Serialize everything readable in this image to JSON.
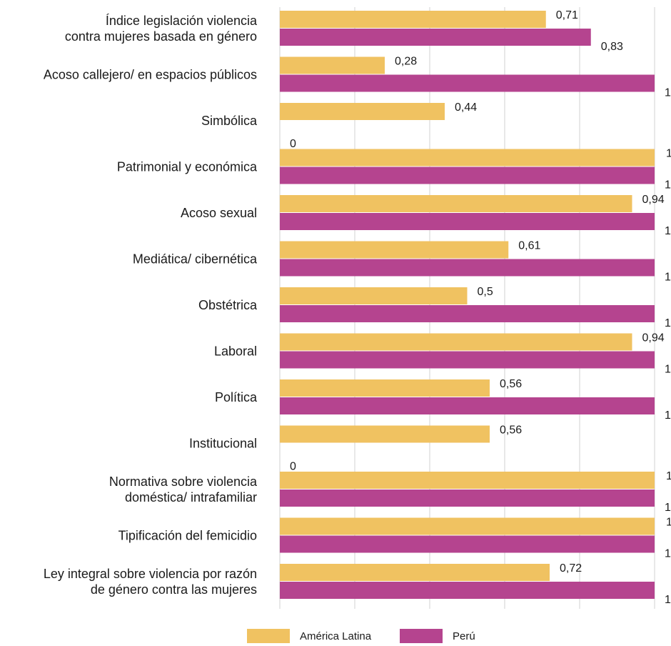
{
  "chart_data": {
    "type": "bar",
    "orientation": "horizontal",
    "categories": [
      [
        "Índice legislación violencia",
        "contra mujeres basada en género"
      ],
      [
        "Acoso callejero/ en espacios públicos"
      ],
      [
        "Simbólica"
      ],
      [
        "Patrimonial y económica"
      ],
      [
        "Acoso sexual"
      ],
      [
        "Mediática/ cibernética"
      ],
      [
        "Obstétrica"
      ],
      [
        "Laboral"
      ],
      [
        "Política"
      ],
      [
        "Institucional"
      ],
      [
        "Normativa sobre violencia",
        "doméstica/ intrafamiliar"
      ],
      [
        "Tipificación del femicidio"
      ],
      [
        "Ley integral sobre violencia por razón",
        "de género contra las mujeres"
      ]
    ],
    "series": [
      {
        "name": "América Latina",
        "color": "#F0C261",
        "values": [
          0.71,
          0.28,
          0.44,
          1,
          0.94,
          0.61,
          0.5,
          0.94,
          0.56,
          0.56,
          1,
          1,
          0.72
        ],
        "labels": [
          "0,71",
          "0,28",
          "0,44",
          "1",
          "0,94",
          "0,61",
          "0,5",
          "0,94",
          "0,56",
          "0,56",
          "1",
          "1",
          "0,72"
        ]
      },
      {
        "name": "Perú",
        "color": "#B5448F",
        "values": [
          0.83,
          1,
          0,
          1,
          1,
          1,
          1,
          1,
          1,
          0,
          1,
          1,
          1
        ],
        "labels": [
          "0,83",
          "1",
          "0",
          "1",
          "1",
          "1",
          "1",
          "1",
          "1",
          "0",
          "1",
          "1",
          "1"
        ]
      }
    ],
    "xlim": [
      0,
      1
    ],
    "grid": true,
    "legend_position": "bottom"
  }
}
